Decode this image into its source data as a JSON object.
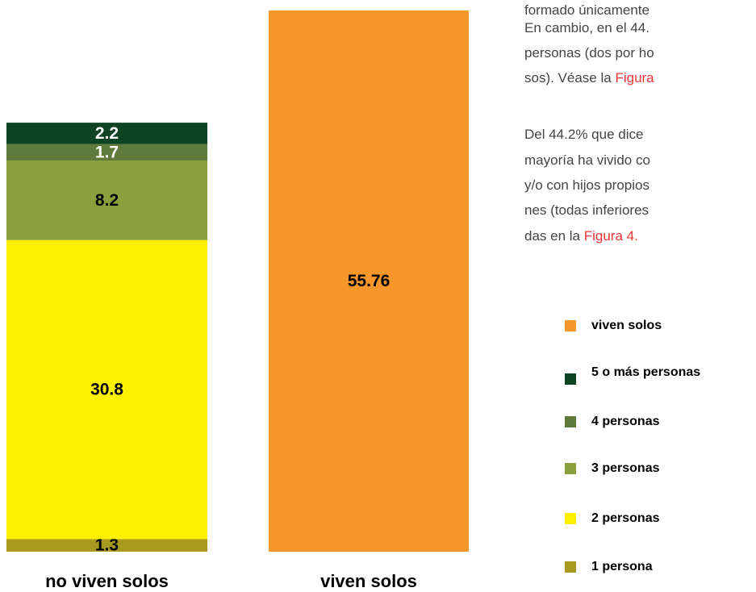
{
  "chart_data": {
    "type": "stacked_bar",
    "categories": [
      "no viven solos",
      "viven solos"
    ],
    "series": [
      {
        "name": "1 persona",
        "color": "#a89a1e",
        "values": [
          1.3,
          null
        ]
      },
      {
        "name": "2 personas",
        "color": "#fff000",
        "values": [
          30.8,
          null
        ]
      },
      {
        "name": "3 personas",
        "color": "#8aa03c",
        "values": [
          8.2,
          null
        ]
      },
      {
        "name": "4 personas",
        "color": "#5f7a3a",
        "values": [
          1.7,
          null
        ]
      },
      {
        "name": "5 o más personas",
        "color": "#0e4423",
        "values": [
          2.2,
          null
        ]
      },
      {
        "name": "viven solos",
        "color": "#f7962b",
        "values": [
          null,
          55.76
        ]
      }
    ]
  },
  "text": {
    "lines": [
      {
        "text": "formado únicamente"
      },
      {
        "text": "En cambio, en el 44."
      },
      {
        "text": "personas (dos por ho"
      },
      {
        "text": "sos). Véase la ",
        "link": "Figura"
      },
      {
        "text": "Del 44.2% que dice"
      },
      {
        "text": "mayoría ha vivido co"
      },
      {
        "text": "y/o con hijos propios"
      },
      {
        "text": "nes (todas inferiores"
      },
      {
        "text": "das en la ",
        "link": "Figura 4."
      }
    ]
  }
}
